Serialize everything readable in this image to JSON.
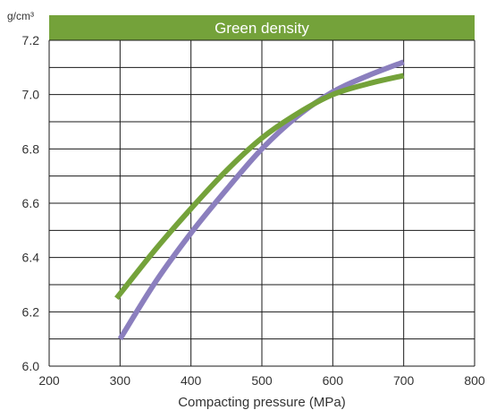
{
  "chart_data": {
    "type": "line",
    "title": "Green density",
    "ylabel_unit": "g/cm³",
    "xlabel": "Compacting pressure (MPa)",
    "xlim": [
      200,
      800
    ],
    "ylim": [
      6.0,
      7.2
    ],
    "x_ticks": [
      200,
      300,
      400,
      500,
      600,
      700,
      800
    ],
    "y_ticks": [
      6.0,
      6.2,
      6.4,
      6.6,
      6.8,
      7.0,
      7.2
    ],
    "y_tick_labels": [
      "6.0",
      "6.2",
      "6.4",
      "6.6",
      "6.8",
      "7.0",
      "7.2"
    ],
    "grid": true,
    "series": [
      {
        "color": "#8b7fbe",
        "x": [
          300,
          350,
          400,
          450,
          500,
          550,
          600,
          650,
          700
        ],
        "y": [
          6.1,
          6.31,
          6.49,
          6.65,
          6.8,
          6.92,
          7.01,
          7.07,
          7.12
        ]
      },
      {
        "color": "#74a23a",
        "x": [
          295,
          350,
          400,
          450,
          500,
          550,
          600,
          650,
          700
        ],
        "y": [
          6.25,
          6.43,
          6.58,
          6.72,
          6.84,
          6.93,
          7.0,
          7.04,
          7.07
        ]
      }
    ],
    "title_bar_color": "#74a23a"
  }
}
